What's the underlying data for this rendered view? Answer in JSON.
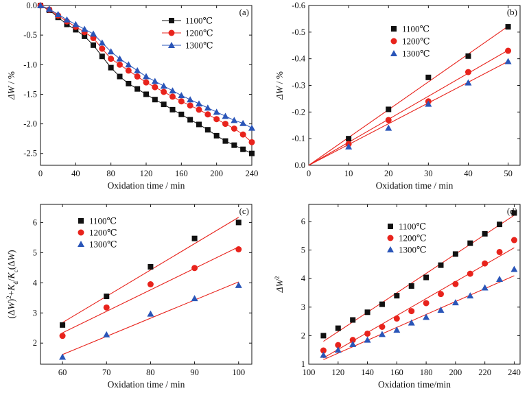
{
  "colors": {
    "s1100": "#111111",
    "s1200": "#e8231c",
    "s1300": "#2a55b8",
    "fit": "#e8231c"
  },
  "chart_data": [
    {
      "type": "line",
      "panel_label": "(a)",
      "xlabel": "Oxidation time / min",
      "ylabel_parts": [
        {
          "t": "ΔW",
          "i": true
        },
        {
          "t": " / %"
        }
      ],
      "xlim": [
        0,
        240
      ],
      "ylim": [
        -2.7,
        0
      ],
      "xticks": [
        0,
        40,
        80,
        120,
        160,
        200,
        240
      ],
      "yticks": [
        0.0,
        -0.5,
        -1.0,
        -1.5,
        -2.0,
        -2.5
      ],
      "ytick_labels": [
        "0.0",
        "-0.5",
        "-1.0",
        "-1.5",
        "-2.0",
        "-2.5"
      ],
      "legend_position": "top-right",
      "x": [
        0,
        10,
        20,
        30,
        40,
        50,
        60,
        70,
        80,
        90,
        100,
        110,
        120,
        130,
        140,
        150,
        160,
        170,
        180,
        190,
        200,
        210,
        220,
        230,
        240
      ],
      "series": [
        {
          "name": "1100℃",
          "marker": "square",
          "color_key": "s1100",
          "connect": true,
          "values": [
            0,
            -0.08,
            -0.2,
            -0.32,
            -0.41,
            -0.52,
            -0.67,
            -0.86,
            -1.05,
            -1.2,
            -1.32,
            -1.41,
            -1.5,
            -1.59,
            -1.67,
            -1.76,
            -1.84,
            -1.93,
            -2.01,
            -2.1,
            -2.2,
            -2.29,
            -2.36,
            -2.43,
            -2.5
          ]
        },
        {
          "name": "1200℃",
          "marker": "circle",
          "color_key": "s1200",
          "connect": true,
          "values": [
            0,
            -0.07,
            -0.17,
            -0.27,
            -0.36,
            -0.45,
            -0.55,
            -0.73,
            -0.9,
            -1.0,
            -1.1,
            -1.2,
            -1.3,
            -1.38,
            -1.46,
            -1.54,
            -1.62,
            -1.69,
            -1.76,
            -1.84,
            -1.92,
            -2.0,
            -2.08,
            -2.18,
            -2.31
          ]
        },
        {
          "name": "1300℃",
          "marker": "triangle",
          "color_key": "s1300",
          "connect": true,
          "values": [
            0,
            -0.06,
            -0.15,
            -0.24,
            -0.32,
            -0.4,
            -0.48,
            -0.63,
            -0.78,
            -0.9,
            -1.0,
            -1.1,
            -1.2,
            -1.28,
            -1.36,
            -1.44,
            -1.52,
            -1.59,
            -1.66,
            -1.73,
            -1.8,
            -1.87,
            -1.94,
            -1.99,
            -2.07
          ]
        }
      ]
    },
    {
      "type": "scatter",
      "panel_label": "(b)",
      "xlabel": "Oxidation time / min",
      "ylabel_parts": [
        {
          "t": "ΔW",
          "i": true
        },
        {
          "t": " / %"
        }
      ],
      "xlim": [
        0,
        53
      ],
      "ylim": [
        0,
        -0.6
      ],
      "xticks": [
        0,
        10,
        20,
        30,
        40,
        50
      ],
      "yticks": [
        0.0,
        -0.1,
        -0.2,
        -0.3,
        -0.4,
        -0.5,
        -0.6
      ],
      "ytick_labels": [
        "0.0",
        "-0.1",
        "-0.2",
        "-0.3",
        "-0.4",
        "-0.5",
        "-0.6"
      ],
      "legend_position": "top-left",
      "x": [
        10,
        20,
        30,
        40,
        50
      ],
      "series": [
        {
          "name": "1100℃",
          "marker": "square",
          "color_key": "s1100",
          "values": [
            -0.1,
            -0.21,
            -0.33,
            -0.41,
            -0.52
          ]
        },
        {
          "name": "1200℃",
          "marker": "circle",
          "color_key": "s1200",
          "values": [
            -0.08,
            -0.17,
            -0.24,
            -0.35,
            -0.43
          ]
        },
        {
          "name": "1300℃",
          "marker": "triangle",
          "color_key": "s1300",
          "values": [
            -0.07,
            -0.14,
            -0.23,
            -0.31,
            -0.39
          ]
        }
      ],
      "fit_lines": [
        {
          "x": [
            0,
            50
          ],
          "y": [
            0,
            -0.522
          ]
        },
        {
          "x": [
            0,
            50
          ],
          "y": [
            0,
            -0.432
          ]
        },
        {
          "x": [
            0,
            50
          ],
          "y": [
            0,
            -0.39
          ]
        }
      ]
    },
    {
      "type": "scatter",
      "panel_label": "(c)",
      "xlabel": "Oxidation time / min",
      "ylabel_parts": [
        {
          "t": "(Δ"
        },
        {
          "t": "W",
          "i": true
        },
        {
          "t": ")"
        },
        {
          "t": "2",
          "sup": true
        },
        {
          "t": "+"
        },
        {
          "t": "K",
          "i": true
        },
        {
          "t": "d",
          "sub": true
        },
        {
          "t": "/"
        },
        {
          "t": "K",
          "i": true
        },
        {
          "t": "c",
          "sub": true
        },
        {
          "t": "(Δ"
        },
        {
          "t": "W",
          "i": true
        },
        {
          "t": ")"
        }
      ],
      "xlim": [
        55,
        103
      ],
      "ylim": [
        1.3,
        6.6
      ],
      "xticks": [
        60,
        70,
        80,
        90,
        100
      ],
      "yticks": [
        2,
        3,
        4,
        5,
        6
      ],
      "ytick_labels": [
        "2",
        "3",
        "4",
        "5",
        "6"
      ],
      "legend_position": "top-left",
      "x": [
        60,
        70,
        80,
        90,
        100
      ],
      "series": [
        {
          "name": "1100℃",
          "marker": "square",
          "color_key": "s1100",
          "values": [
            2.6,
            3.55,
            4.53,
            5.47,
            6.0
          ]
        },
        {
          "name": "1200℃",
          "marker": "circle",
          "color_key": "s1200",
          "values": [
            2.24,
            3.18,
            3.95,
            4.49,
            5.11
          ]
        },
        {
          "name": "1300℃",
          "marker": "triangle",
          "color_key": "s1300",
          "values": [
            1.54,
            2.28,
            2.97,
            3.48,
            3.92
          ]
        }
      ],
      "fit_lines": [
        {
          "x": [
            60,
            100
          ],
          "y": [
            2.68,
            6.17
          ]
        },
        {
          "x": [
            60,
            100
          ],
          "y": [
            2.34,
            5.19
          ]
        },
        {
          "x": [
            60,
            100
          ],
          "y": [
            1.62,
            4.03
          ]
        }
      ]
    },
    {
      "type": "scatter",
      "panel_label": "(d)",
      "xlabel": "Oxidation time/min",
      "ylabel_parts": [
        {
          "t": "ΔW",
          "i": true
        },
        {
          "t": "2",
          "sup": true
        }
      ],
      "xlim": [
        100,
        244
      ],
      "ylim": [
        1.0,
        6.6
      ],
      "xticks": [
        100,
        120,
        140,
        160,
        180,
        200,
        220,
        240
      ],
      "yticks": [
        1,
        2,
        3,
        4,
        5,
        6
      ],
      "ytick_labels": [
        "1",
        "2",
        "3",
        "4",
        "5",
        "6"
      ],
      "legend_position": "top-left",
      "x": [
        110,
        120,
        130,
        140,
        150,
        160,
        170,
        180,
        190,
        200,
        210,
        220,
        230,
        240
      ],
      "series": [
        {
          "name": "1100℃",
          "marker": "square",
          "color_key": "s1100",
          "values": [
            2.0,
            2.26,
            2.55,
            2.82,
            3.1,
            3.4,
            3.74,
            4.04,
            4.47,
            4.86,
            5.24,
            5.57,
            5.9,
            6.3
          ]
        },
        {
          "name": "1200℃",
          "marker": "circle",
          "color_key": "s1200",
          "values": [
            1.48,
            1.67,
            1.85,
            2.07,
            2.31,
            2.6,
            2.86,
            3.14,
            3.46,
            3.81,
            4.17,
            4.53,
            4.93,
            5.35
          ]
        },
        {
          "name": "1300℃",
          "marker": "triangle",
          "color_key": "s1300",
          "values": [
            1.32,
            1.5,
            1.7,
            1.85,
            2.05,
            2.2,
            2.45,
            2.65,
            2.9,
            3.16,
            3.4,
            3.68,
            3.98,
            4.33
          ]
        }
      ],
      "fit_lines": [
        {
          "x": [
            110,
            240
          ],
          "y": [
            1.8,
            6.22
          ]
        },
        {
          "x": [
            110,
            240
          ],
          "y": [
            1.22,
            5.08
          ]
        },
        {
          "x": [
            110,
            240
          ],
          "y": [
            1.16,
            4.1
          ]
        }
      ]
    }
  ]
}
